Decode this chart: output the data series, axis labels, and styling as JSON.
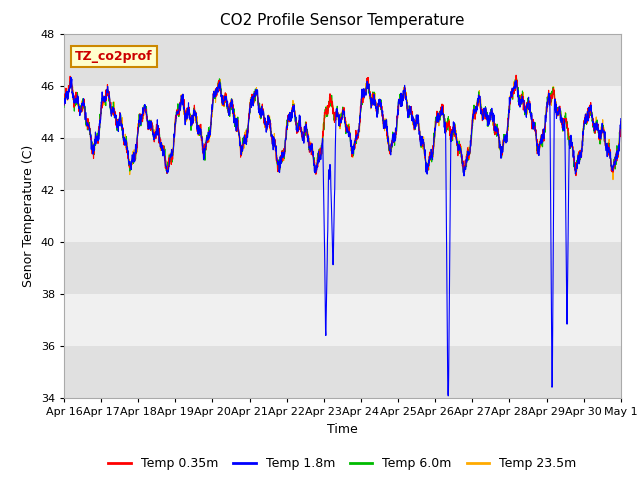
{
  "title": "CO2 Profile Sensor Temperature",
  "ylabel": "Senor Temperature (C)",
  "xlabel": "Time",
  "annotation_text": "TZ_co2prof",
  "annotation_bg": "#ffffcc",
  "annotation_border": "#cc8800",
  "annotation_text_color": "#cc0000",
  "ylim": [
    34,
    48
  ],
  "xlim_days": [
    0,
    15
  ],
  "x_tick_labels": [
    "Apr 16",
    "Apr 17",
    "Apr 18",
    "Apr 19",
    "Apr 20",
    "Apr 21",
    "Apr 22",
    "Apr 23",
    "Apr 24",
    "Apr 25",
    "Apr 26",
    "Apr 27",
    "Apr 28",
    "Apr 29",
    "Apr 30",
    "May 1"
  ],
  "legend_entries": [
    "Temp 0.35m",
    "Temp 1.8m",
    "Temp 6.0m",
    "Temp 23.5m"
  ],
  "legend_colors": [
    "#ff0000",
    "#0000ff",
    "#00bb00",
    "#ffaa00"
  ],
  "bg_color": "#ffffff",
  "band_light": "#f0f0f0",
  "band_dark": "#e0e0e0",
  "title_fontsize": 11,
  "label_fontsize": 9,
  "tick_fontsize": 8
}
